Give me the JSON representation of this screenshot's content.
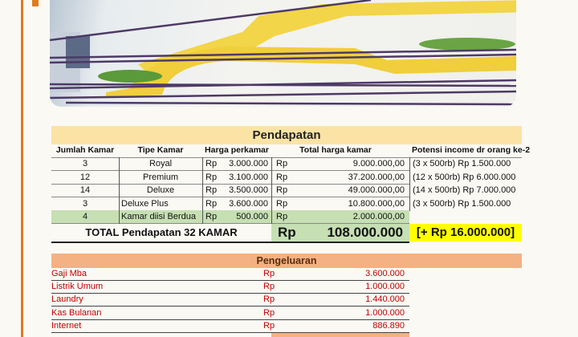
{
  "pendapatan": {
    "title": "Pendapatan",
    "headers": [
      "Jumlah Kamar",
      "Tipe Kamar",
      "Harga perkamar",
      "Total harga kamar",
      "Potensi income dr orang ke-2"
    ],
    "rows": [
      {
        "qty": "3",
        "type": "Royal",
        "cur1": "Rp",
        "price": "3.000.000",
        "cur2": "Rp",
        "total": "9.000.000,00",
        "potensi": "(3 x 500rb) Rp 1.500.000"
      },
      {
        "qty": "12",
        "type": "Premium",
        "cur1": "Rp",
        "price": "3.100.000",
        "cur2": "Rp",
        "total": "37.200.000,00",
        "potensi": "(12 x 500rb) Rp 6.000.000"
      },
      {
        "qty": "14",
        "type": "Deluxe",
        "cur1": "Rp",
        "price": "3.500.000",
        "cur2": "Rp",
        "total": "49.000.000,00",
        "potensi": "(14 x 500rb) Rp 7.000.000"
      },
      {
        "qty": "3",
        "type": "Deluxe Plus",
        "cur1": "Rp",
        "price": "3.600.000",
        "cur2": "Rp",
        "total": "10.800.000,00",
        "potensi": "(3 x 500rb) Rp 1.500.000"
      },
      {
        "qty": "4",
        "type": "Kamar diisi Berdua",
        "cur1": "Rp",
        "price": "500.000",
        "cur2": "Rp",
        "total": "2.000.000,00",
        "potensi": ""
      }
    ],
    "total_label": "TOTAL Pendapatan 32 KAMAR",
    "total_cur": "Rp",
    "total_value": "108.000.000",
    "bonus": "[+ Rp 16.000.000]"
  },
  "pengeluaran": {
    "title": "Pengeluaran",
    "rows": [
      {
        "label": "Gaji Mba",
        "cur": "Rp",
        "value": "3.600.000"
      },
      {
        "label": "Listrik Umum",
        "cur": "Rp",
        "value": "1.000.000"
      },
      {
        "label": "Laundry",
        "cur": "Rp",
        "value": "1.440.000"
      },
      {
        "label": "Kas Bulanan",
        "cur": "Rp",
        "value": "1.000.000"
      },
      {
        "label": "Internet",
        "cur": "Rp",
        "value": "886.890"
      }
    ]
  },
  "colors": {
    "accent": "#e07a1f",
    "income_header": "#fbe3a5",
    "expense_header": "#f4b183",
    "green": "#c6dfb3",
    "yellow": "#ffff00",
    "expense_text": "#c00000"
  }
}
